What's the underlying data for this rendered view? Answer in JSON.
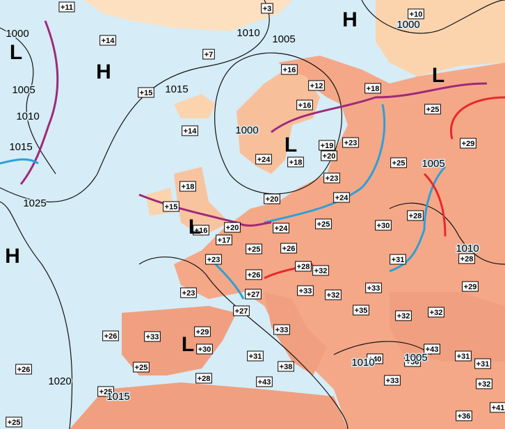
{
  "temperatures": [
    "+11",
    "+3",
    "+10",
    "+14",
    "+7",
    "+16",
    "+12",
    "+18",
    "+15",
    "+16",
    "+25",
    "+14",
    "+19",
    "+23",
    "+20",
    "+29",
    "+24",
    "+18",
    "+25",
    "+23",
    "+18",
    "+24",
    "+20",
    "+15",
    "+28",
    "+16",
    "+20",
    "+24",
    "+25",
    "+30",
    "+17",
    "+25",
    "+26",
    "+23",
    "+31",
    "+28",
    "+28",
    "+32",
    "+26",
    "+29",
    "+23",
    "+27",
    "+33",
    "+32",
    "+33",
    "+27",
    "+35",
    "+32",
    "+32",
    "+33",
    "+29",
    "+26",
    "+33",
    "+30",
    "+43",
    "+31",
    "+40",
    "+36",
    "+31",
    "+31",
    "+25",
    "+38",
    "+26",
    "+28",
    "+43",
    "+33",
    "+32",
    "+25",
    "+41",
    "+36",
    "+25"
  ],
  "isobars": [
    "1000",
    "1010",
    "1005",
    "1000",
    "1005",
    "1015",
    "1010",
    "1015",
    "1000",
    "1025",
    "1005",
    "1010",
    "1020",
    "1015",
    "1010",
    "1005"
  ],
  "centers": [
    "L",
    "H",
    "H",
    "L",
    "L",
    "L",
    "H",
    "L"
  ]
}
